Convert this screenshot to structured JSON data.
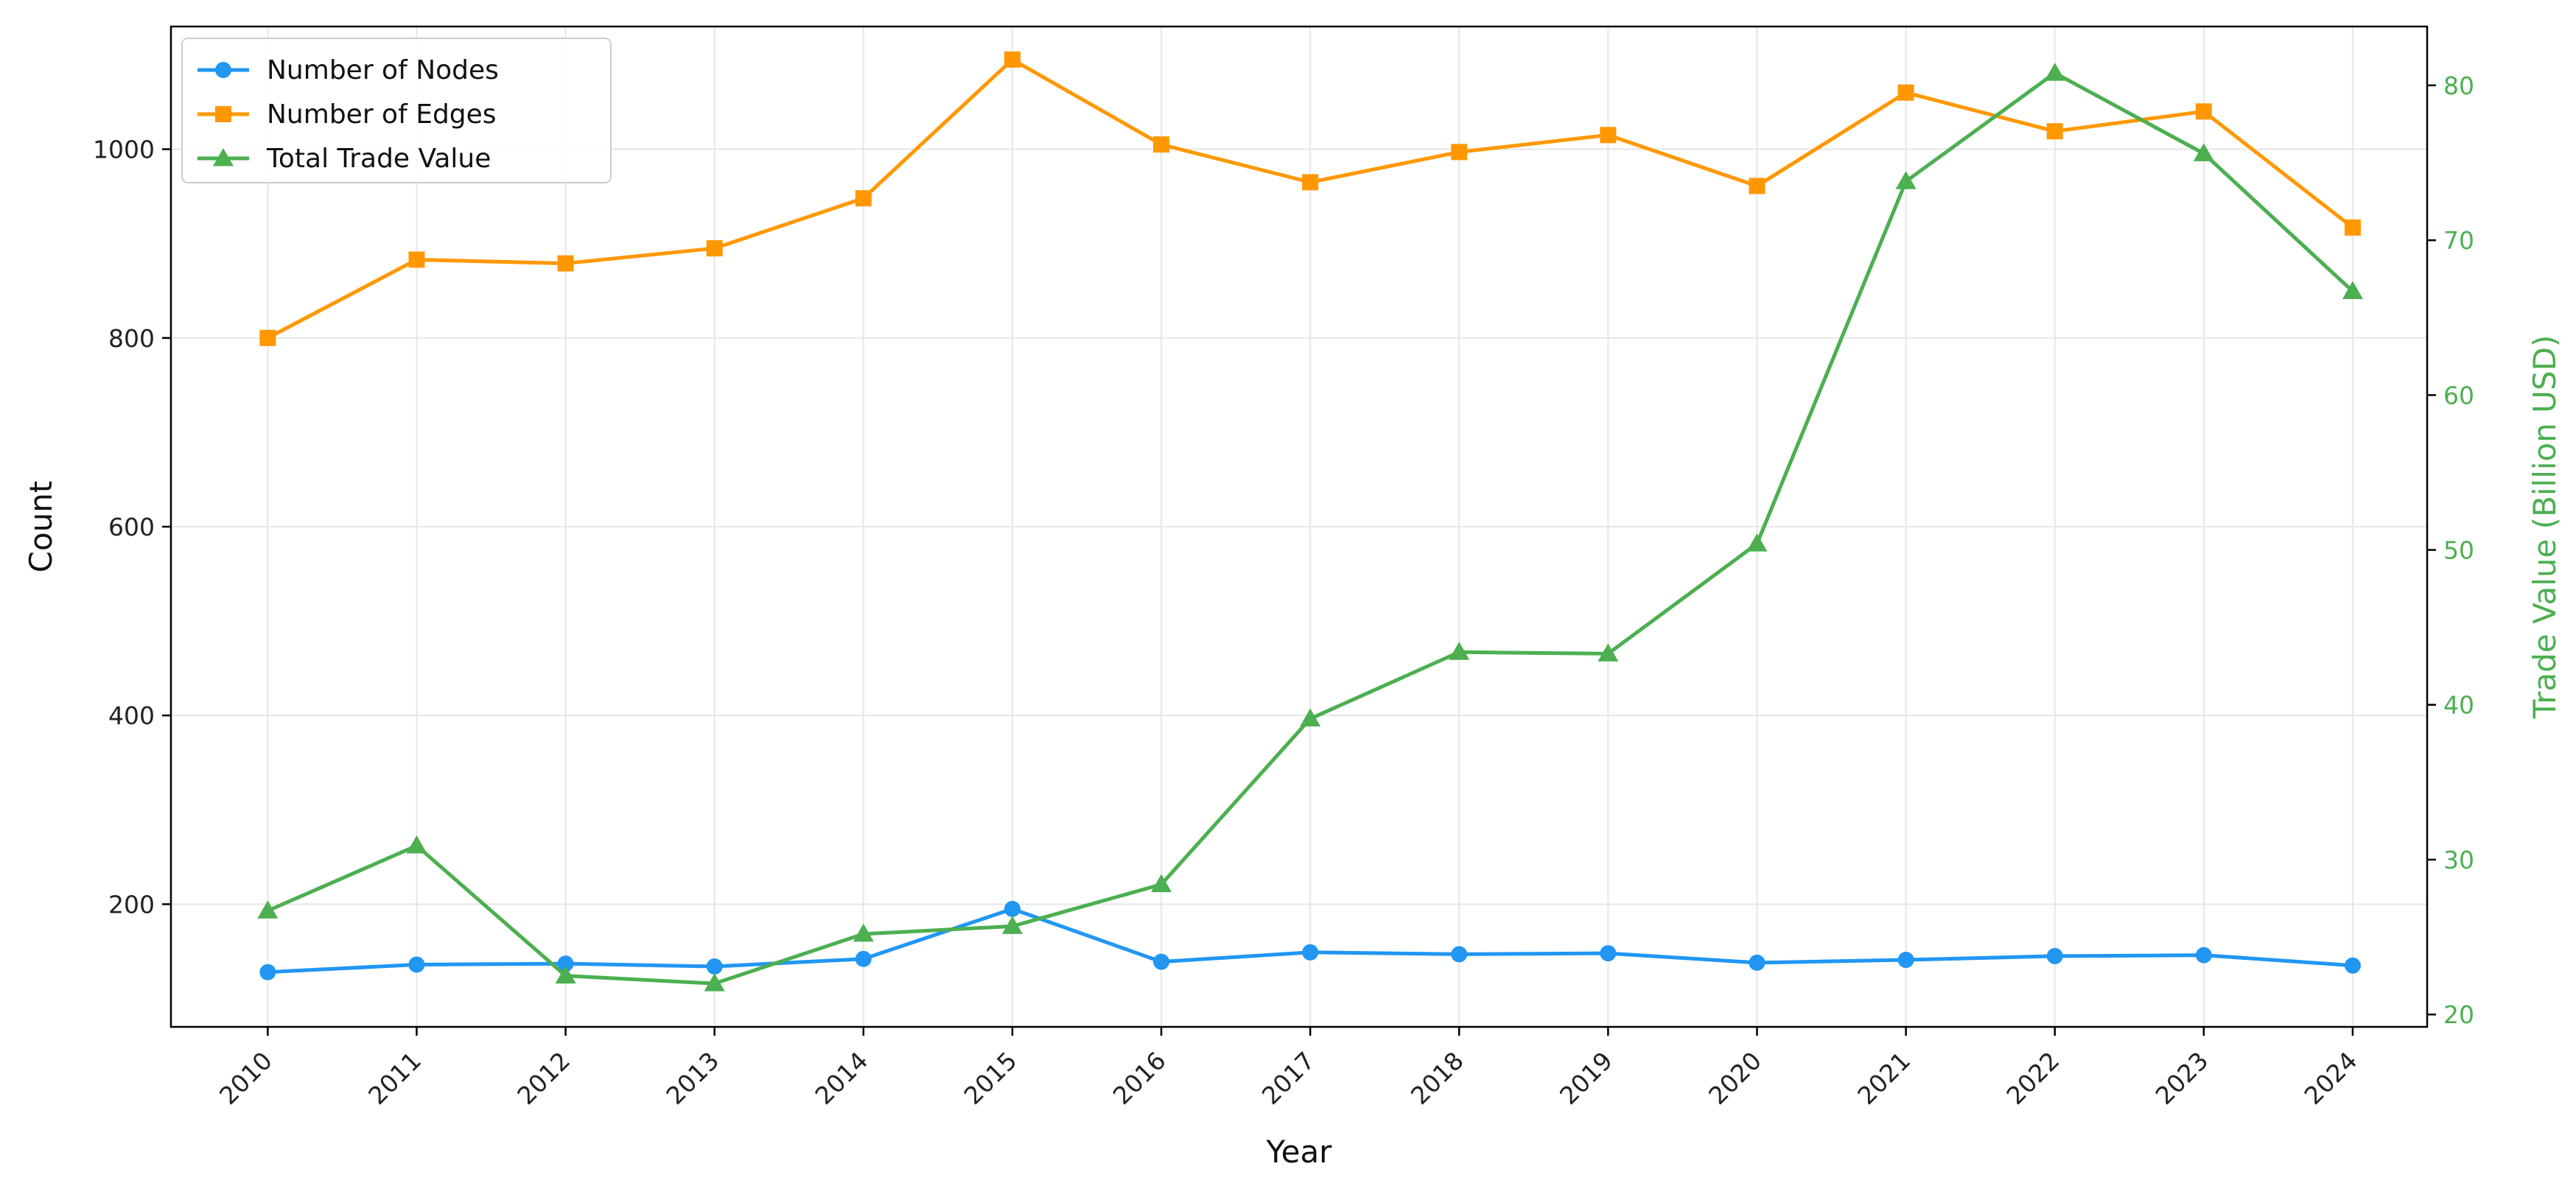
{
  "chart_data": {
    "type": "line",
    "xlabel": "Year",
    "ylabel": "Count",
    "y2label": "Trade Value (Billion USD)",
    "x": [
      2010,
      2011,
      2012,
      2013,
      2014,
      2015,
      2016,
      2017,
      2018,
      2019,
      2020,
      2021,
      2022,
      2023,
      2024
    ],
    "ylim": [
      70,
      1130
    ],
    "y2lim": [
      19.2,
      83.8
    ],
    "yticks": [
      200,
      400,
      600,
      800,
      1000
    ],
    "y2ticks": [
      20,
      30,
      40,
      50,
      60,
      70,
      80
    ],
    "grid": true,
    "legend_position": "upper-left",
    "series": [
      {
        "name": "Number of Nodes",
        "axis": "left",
        "marker": "circle",
        "color": "#2196f3",
        "values": [
          128,
          136,
          137,
          134,
          142,
          195,
          139,
          149,
          147,
          148,
          138,
          141,
          145,
          146,
          135
        ]
      },
      {
        "name": "Number of Edges",
        "axis": "left",
        "marker": "square",
        "color": "#ff9800",
        "values": [
          800,
          883,
          879,
          895,
          948,
          1095,
          1005,
          965,
          997,
          1015,
          961,
          1060,
          1019,
          1040,
          917
        ]
      },
      {
        "name": "Total Trade Value",
        "axis": "right",
        "marker": "triangle",
        "color": "#4caf50",
        "values": [
          26.7,
          30.9,
          22.5,
          22.0,
          25.2,
          25.7,
          28.4,
          39.1,
          43.4,
          43.3,
          50.4,
          73.8,
          80.8,
          75.6,
          66.7
        ]
      }
    ]
  }
}
